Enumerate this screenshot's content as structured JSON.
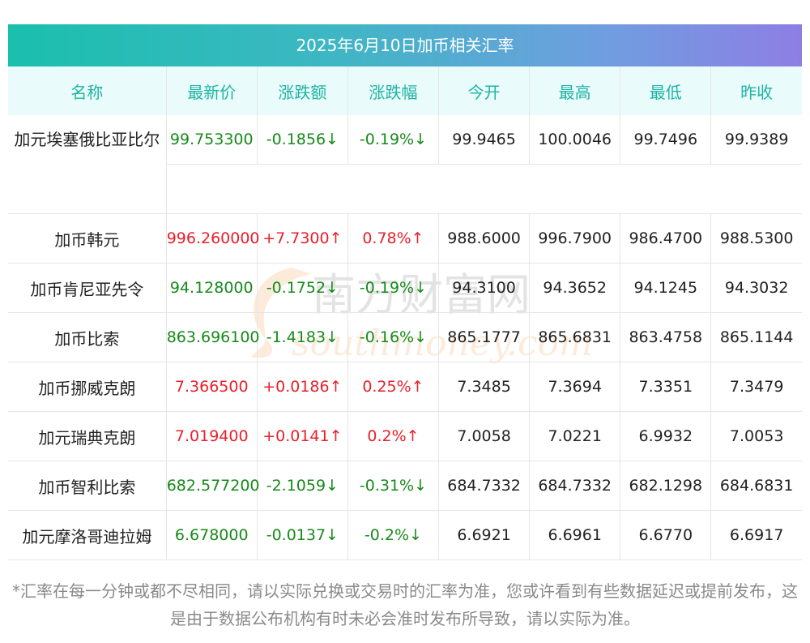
{
  "title": "2025年6月10日加币相关汇率",
  "headers": [
    "名称",
    "最新价",
    "涨跌额",
    "涨跌幅",
    "今开",
    "最高",
    "最低",
    "昨收"
  ],
  "rows": [
    {
      "name": "加元埃塞俄比亚比尔",
      "latest": "99.753300",
      "change": "-0.1856↓",
      "pct": "-0.19%↓",
      "open": "99.9465",
      "high": "100.0046",
      "low": "99.7496",
      "prev": "99.9389",
      "dir": "down"
    },
    {
      "name": "加币韩元",
      "latest": "996.260000",
      "change": "+7.7300↑",
      "pct": "0.78%↑",
      "open": "988.6000",
      "high": "996.7900",
      "low": "986.4700",
      "prev": "988.5300",
      "dir": "up"
    },
    {
      "name": "加币肯尼亚先令",
      "latest": "94.128000",
      "change": "-0.1752↓",
      "pct": "-0.19%↓",
      "open": "94.3100",
      "high": "94.3652",
      "low": "94.1245",
      "prev": "94.3032",
      "dir": "down"
    },
    {
      "name": "加币比索",
      "latest": "863.696100",
      "change": "-1.4183↓",
      "pct": "-0.16%↓",
      "open": "865.1777",
      "high": "865.6831",
      "low": "863.4758",
      "prev": "865.1144",
      "dir": "down"
    },
    {
      "name": "加币挪威克朗",
      "latest": "7.366500",
      "change": "+0.0186↑",
      "pct": "0.25%↑",
      "open": "7.3485",
      "high": "7.3694",
      "low": "7.3351",
      "prev": "7.3479",
      "dir": "up"
    },
    {
      "name": "加元瑞典克朗",
      "latest": "7.019400",
      "change": "+0.0141↑",
      "pct": "0.2%↑",
      "open": "7.0058",
      "high": "7.0221",
      "low": "6.9932",
      "prev": "7.0053",
      "dir": "up"
    },
    {
      "name": "加币智利比索",
      "latest": "682.577200",
      "change": "-2.1059↓",
      "pct": "-0.31%↓",
      "open": "684.7332",
      "high": "684.7332",
      "low": "682.1298",
      "prev": "684.6831",
      "dir": "down"
    },
    {
      "name": "加元摩洛哥迪拉姆",
      "latest": "6.678000",
      "change": "-0.0137↓",
      "pct": "-0.2%↓",
      "open": "6.6921",
      "high": "6.6961",
      "low": "6.6770",
      "prev": "6.6917",
      "dir": "down"
    }
  ],
  "note": "*汇率在每一分钟或都不尽相同，请以实际兑换或交易时的汇率为准，您或许看到有些数据延迟或提前发布，这是由于数据公布机构有时未必会准时发布所导致，请以实际为准。",
  "watermark": {
    "cn": "南方财富网",
    "en": "southmoney.com"
  },
  "colors": {
    "up": "#e8202a",
    "down": "#178a1a",
    "header_text": "#1fb4a4",
    "header_bg": "#e9fbfb"
  }
}
